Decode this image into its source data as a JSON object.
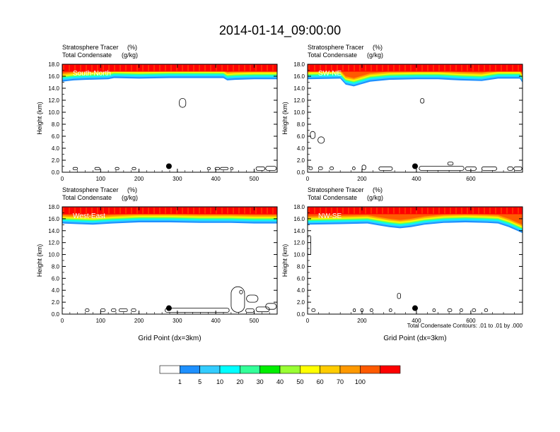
{
  "page_title": "2014-01-14_09:00:00",
  "colors": {
    "frame": "#000000",
    "contour": "#000000",
    "marker": "#000000",
    "panel_label": "#ffffff"
  },
  "colorbar": {
    "colors": [
      "#ffffff",
      "#1e90ff",
      "#33ccff",
      "#00ffff",
      "#33ff99",
      "#00ee00",
      "#99ff33",
      "#ffff00",
      "#ffcc00",
      "#ff9900",
      "#ff5a00",
      "#ff0000"
    ],
    "labels": [
      "1",
      "5",
      "10",
      "20",
      "30",
      "40",
      "50",
      "60",
      "70",
      "100"
    ]
  },
  "footer_note": "Total Condensate Contours: .01 to .01 by .000",
  "chart_data": [
    {
      "type": "heatmap",
      "panel_label": "South-North",
      "variable_1": "Stratosphere Tracer",
      "variable_1_units": "(%)",
      "variable_2": "Total Condensate",
      "variable_2_units": "(g/kg)",
      "ylabel": "Height (km)",
      "xlabel": "",
      "xlim": [
        0,
        560
      ],
      "ylim": [
        0,
        18
      ],
      "xticks": [
        "0",
        "100",
        "200",
        "300",
        "400",
        "500"
      ],
      "yticks": [
        "0.0",
        "2.0",
        "4.0",
        "6.0",
        "8.0",
        "10.0",
        "12.0",
        "14.0",
        "16.0",
        "18.0"
      ],
      "tracer_base_km": [
        [
          0,
          15.1
        ],
        [
          15,
          15.2
        ],
        [
          30,
          15.3
        ],
        [
          60,
          15.4
        ],
        [
          120,
          15.5
        ],
        [
          135,
          15.7
        ],
        [
          200,
          15.6
        ],
        [
          280,
          15.7
        ],
        [
          330,
          15.7
        ],
        [
          420,
          15.7
        ],
        [
          430,
          15.3
        ],
        [
          450,
          15.4
        ],
        [
          500,
          15.5
        ],
        [
          560,
          15.5
        ]
      ],
      "point_marker": {
        "x": 278,
        "y_km": 1.0
      },
      "condensate_contours": [
        {
          "x": [
            305,
            322
          ],
          "y_km": [
            10.8,
            12.3
          ]
        },
        {
          "x": [
            28,
            40
          ],
          "y_km": [
            0.4,
            0.8
          ]
        },
        {
          "x": [
            85,
            98
          ],
          "y_km": [
            0.4,
            0.8
          ]
        },
        {
          "x": [
            138,
            148
          ],
          "y_km": [
            0.4,
            0.8
          ]
        },
        {
          "x": [
            182,
            192
          ],
          "y_km": [
            0.4,
            0.8
          ]
        },
        {
          "x": [
            378,
            386
          ],
          "y_km": [
            0.4,
            0.8
          ]
        },
        {
          "x": [
            398,
            410
          ],
          "y_km": [
            0.4,
            0.8
          ]
        },
        {
          "x": [
            412,
            432
          ],
          "y_km": [
            0.4,
            0.8
          ]
        },
        {
          "x": [
            438,
            445
          ],
          "y_km": [
            0.4,
            0.8
          ]
        },
        {
          "x": [
            505,
            528
          ],
          "y_km": [
            0.3,
            0.9
          ]
        },
        {
          "x": [
            530,
            558
          ],
          "y_km": [
            0.3,
            1.0
          ]
        }
      ]
    },
    {
      "type": "heatmap",
      "panel_label": "SW-NE",
      "variable_1": "Stratosphere Tracer",
      "variable_1_units": "(%)",
      "variable_2": "Total Condensate",
      "variable_2_units": "(g/kg)",
      "ylabel": "Height (km)",
      "xlabel": "",
      "xlim": [
        0,
        790
      ],
      "ylim": [
        0,
        18
      ],
      "xticks": [
        "0",
        "200",
        "400",
        "600"
      ],
      "yticks": [
        "0.0",
        "2.0",
        "4.0",
        "6.0",
        "8.0",
        "10.0",
        "12.0",
        "14.0",
        "16.0",
        "18.0"
      ],
      "tracer_base_km": [
        [
          0,
          15.5
        ],
        [
          120,
          15.6
        ],
        [
          140,
          14.6
        ],
        [
          170,
          14.3
        ],
        [
          200,
          14.7
        ],
        [
          230,
          15.1
        ],
        [
          300,
          15.4
        ],
        [
          400,
          15.5
        ],
        [
          480,
          15.5
        ],
        [
          560,
          15.3
        ],
        [
          640,
          15.2
        ],
        [
          700,
          15.6
        ],
        [
          780,
          15.6
        ],
        [
          790,
          14.9
        ]
      ],
      "point_marker": {
        "x": 395,
        "y_km": 1.0
      },
      "condensate_contours": [
        {
          "x": [
            415,
            428
          ],
          "y_km": [
            11.5,
            12.3
          ]
        },
        {
          "x": [
            10,
            28
          ],
          "y_km": [
            5.6,
            6.8
          ]
        },
        {
          "x": [
            38,
            62
          ],
          "y_km": [
            4.8,
            5.9
          ]
        },
        {
          "x": [
            5,
            18
          ],
          "y_km": [
            0.4,
            0.9
          ]
        },
        {
          "x": [
            40,
            55
          ],
          "y_km": [
            0.4,
            0.9
          ]
        },
        {
          "x": [
            82,
            95
          ],
          "y_km": [
            0.4,
            0.9
          ]
        },
        {
          "x": [
            165,
            175
          ],
          "y_km": [
            0.4,
            0.9
          ]
        },
        {
          "x": [
            200,
            214
          ],
          "y_km": [
            0.4,
            1.2
          ]
        },
        {
          "x": [
            262,
            312
          ],
          "y_km": [
            0.3,
            0.9
          ]
        },
        {
          "x": [
            410,
            575
          ],
          "y_km": [
            0.3,
            1.0
          ]
        },
        {
          "x": [
            515,
            535
          ],
          "y_km": [
            1.2,
            1.7
          ]
        },
        {
          "x": [
            580,
            620
          ],
          "y_km": [
            0.3,
            0.9
          ]
        },
        {
          "x": [
            640,
            695
          ],
          "y_km": [
            0.3,
            0.9
          ]
        },
        {
          "x": [
            735,
            755
          ],
          "y_km": [
            0.3,
            0.9
          ]
        },
        {
          "x": [
            758,
            788
          ],
          "y_km": [
            0.3,
            0.9
          ]
        }
      ]
    },
    {
      "type": "heatmap",
      "panel_label": "West-East",
      "variable_1": "Stratosphere Tracer",
      "variable_1_units": "(%)",
      "variable_2": "Total Condensate",
      "variable_2_units": "(g/kg)",
      "ylabel": "Height (km)",
      "xlabel": "Grid Point (dx=3km)",
      "xlim": [
        0,
        560
      ],
      "ylim": [
        0,
        18
      ],
      "xticks": [
        "0",
        "100",
        "200",
        "300",
        "400",
        "500"
      ],
      "yticks": [
        "0.0",
        "2.0",
        "4.0",
        "6.0",
        "8.0",
        "10.0",
        "12.0",
        "14.0",
        "16.0",
        "18.0"
      ],
      "tracer_base_km": [
        [
          0,
          15.2
        ],
        [
          40,
          15.1
        ],
        [
          80,
          15.0
        ],
        [
          130,
          15.2
        ],
        [
          200,
          15.4
        ],
        [
          280,
          15.4
        ],
        [
          360,
          15.3
        ],
        [
          440,
          15.3
        ],
        [
          500,
          15.2
        ],
        [
          560,
          15.2
        ]
      ],
      "point_marker": {
        "x": 278,
        "y_km": 1.0
      },
      "condensate_contours": [
        {
          "x": [
            60,
            70
          ],
          "y_km": [
            0.4,
            0.9
          ]
        },
        {
          "x": [
            100,
            112
          ],
          "y_km": [
            0.4,
            0.9
          ]
        },
        {
          "x": [
            128,
            140
          ],
          "y_km": [
            0.4,
            0.9
          ]
        },
        {
          "x": [
            148,
            170
          ],
          "y_km": [
            0.4,
            0.9
          ]
        },
        {
          "x": [
            180,
            192
          ],
          "y_km": [
            0.4,
            0.9
          ]
        },
        {
          "x": [
            268,
            435
          ],
          "y_km": [
            0.3,
            1.0
          ]
        },
        {
          "x": [
            440,
            475
          ],
          "y_km": [
            0.3,
            4.6
          ]
        },
        {
          "x": [
            480,
            510
          ],
          "y_km": [
            2.0,
            3.2
          ]
        },
        {
          "x": [
            462,
            470
          ],
          "y_km": [
            3.4,
            4.0
          ]
        },
        {
          "x": [
            478,
            500
          ],
          "y_km": [
            0.3,
            0.9
          ]
        },
        {
          "x": [
            505,
            540
          ],
          "y_km": [
            0.4,
            1.2
          ]
        },
        {
          "x": [
            530,
            558
          ],
          "y_km": [
            0.8,
            1.8
          ]
        }
      ]
    },
    {
      "type": "heatmap",
      "panel_label": "NW-SE",
      "variable_1": "Stratosphere Tracer",
      "variable_1_units": "(%)",
      "variable_2": "Total Condensate",
      "variable_2_units": "(g/kg)",
      "ylabel": "Height (km)",
      "xlabel": "Grid Point (dx=3km)",
      "xlim": [
        0,
        790
      ],
      "ylim": [
        0,
        18
      ],
      "xticks": [
        "0",
        "200",
        "400",
        "600"
      ],
      "yticks": [
        "0.0",
        "2.0",
        "4.0",
        "6.0",
        "8.0",
        "10.0",
        "12.0",
        "14.0",
        "16.0",
        "18.0"
      ],
      "tracer_base_km": [
        [
          0,
          15.0
        ],
        [
          120,
          15.1
        ],
        [
          220,
          15.2
        ],
        [
          260,
          14.9
        ],
        [
          300,
          14.6
        ],
        [
          340,
          14.4
        ],
        [
          380,
          14.6
        ],
        [
          430,
          15.0
        ],
        [
          500,
          15.3
        ],
        [
          580,
          15.4
        ],
        [
          660,
          15.3
        ],
        [
          700,
          15.2
        ],
        [
          740,
          14.6
        ],
        [
          770,
          14.0
        ],
        [
          790,
          13.6
        ]
      ],
      "point_marker": {
        "x": 395,
        "y_km": 1.0
      },
      "condensate_contours": [
        {
          "x": [
            0,
            12
          ],
          "y_km": [
            10.0,
            13.2
          ]
        },
        {
          "x": [
            330,
            342
          ],
          "y_km": [
            2.6,
            3.5
          ]
        },
        {
          "x": [
            15,
            28
          ],
          "y_km": [
            0.4,
            0.9
          ]
        },
        {
          "x": [
            168,
            176
          ],
          "y_km": [
            0.4,
            0.9
          ]
        },
        {
          "x": [
            195,
            205
          ],
          "y_km": [
            0.4,
            0.9
          ]
        },
        {
          "x": [
            230,
            240
          ],
          "y_km": [
            0.4,
            0.9
          ]
        },
        {
          "x": [
            300,
            310
          ],
          "y_km": [
            0.4,
            0.9
          ]
        },
        {
          "x": [
            460,
            470
          ],
          "y_km": [
            0.4,
            0.9
          ]
        },
        {
          "x": [
            515,
            530
          ],
          "y_km": [
            0.4,
            0.9
          ]
        },
        {
          "x": [
            560,
            570
          ],
          "y_km": [
            0.4,
            0.9
          ]
        },
        {
          "x": [
            605,
            618
          ],
          "y_km": [
            0.4,
            0.9
          ]
        },
        {
          "x": [
            650,
            662
          ],
          "y_km": [
            0.4,
            0.9
          ]
        }
      ]
    }
  ]
}
